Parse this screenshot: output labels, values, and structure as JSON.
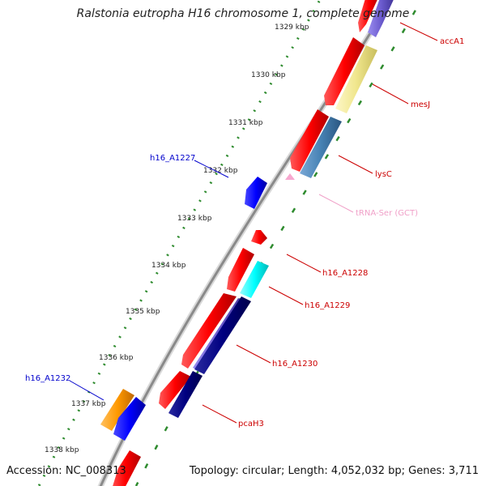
{
  "title": "Ralstonia eutropha H16 chromosome 1, complete genome",
  "accession": "Accession: NC_008313",
  "topology": "Topology: circular; Length: 4,052,032 bp; Genes: 3,711",
  "ticks": [
    {
      "label": "1329 kbp"
    },
    {
      "label": "1330 kbp"
    },
    {
      "label": "1331 kbp"
    },
    {
      "label": "1332 kbp"
    },
    {
      "label": "1333 kbp"
    },
    {
      "label": "1334 kbp"
    },
    {
      "label": "1335 kbp"
    },
    {
      "label": "1336 kbp"
    },
    {
      "label": "1337 kbp"
    },
    {
      "label": "1338 kbp"
    }
  ],
  "genes": [
    {
      "label": "accA1",
      "color": "#cc0000"
    },
    {
      "label": "mesJ",
      "color": "#cc0000"
    },
    {
      "label": "lysC",
      "color": "#cc0000"
    },
    {
      "label": "tRNA-Ser (GCT)",
      "color": "#f0a0c8"
    },
    {
      "label": "h16_A1227",
      "color": "#0000cc"
    },
    {
      "label": "h16_A1228",
      "color": "#cc0000"
    },
    {
      "label": "h16_A1229",
      "color": "#cc0000"
    },
    {
      "label": "h16_A1230",
      "color": "#cc0000"
    },
    {
      "label": "h16_A1232",
      "color": "#0000cc"
    },
    {
      "label": "pcaH3",
      "color": "#cc0000"
    }
  ]
}
